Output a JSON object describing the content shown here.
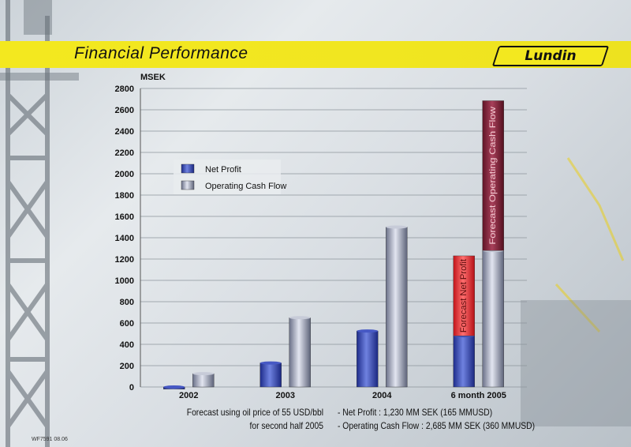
{
  "page": {
    "title": "Financial Performance",
    "logo_text": "Lundin",
    "footer_code": "WF7591 08.06"
  },
  "notes": {
    "left_line1": "Forecast using oil price of 55 USD/bbl",
    "left_line2": "for second half 2005",
    "right_line1": "- Net Profit :  1,230 MM SEK (165 MMUSD)",
    "right_line2": "- Operating Cash Flow :  2,685 MM SEK  (360 MMUSD)"
  },
  "colors": {
    "net_profit": "#2b3ea6",
    "operating_cash_flow": "#8e95ab",
    "forecast_net_profit": "#e0262a",
    "forecast_operating_cash_flow": "#7a1e34",
    "title_band": "#f3e81f"
  },
  "chart_data": {
    "type": "bar",
    "title": "",
    "xlabel": "",
    "ylabel": "MSEK",
    "ylim": [
      0,
      2800
    ],
    "yticks": [
      0,
      200,
      400,
      600,
      800,
      1000,
      1200,
      1400,
      1600,
      1800,
      2000,
      2200,
      2400,
      2600,
      2800
    ],
    "grid": true,
    "legend_position": "top-left",
    "categories": [
      "2002",
      "2003",
      "2004",
      "6 month 2005"
    ],
    "series": [
      {
        "name": "Net Profit",
        "values": [
          -20,
          225,
          525,
          480
        ]
      },
      {
        "name": "Operating Cash Flow",
        "values": [
          125,
          650,
          1500,
          1280
        ]
      }
    ],
    "forecast_stacks": [
      {
        "category": "6 month 2005",
        "series": "Net Profit",
        "base": 480,
        "top": 1230,
        "label": "Forecast Net Profit"
      },
      {
        "category": "6 month 2005",
        "series": "Operating Cash Flow",
        "base": 1280,
        "top": 2685,
        "label": "Forecast Operating Cash Flow"
      }
    ]
  }
}
